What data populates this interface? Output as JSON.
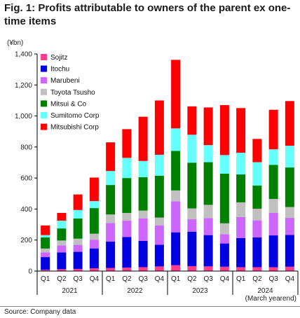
{
  "figure": {
    "title": "Fig. 1: Profits attributable to owners of the parent ex one-time items",
    "unit_label": "(¥bn)",
    "source": "Source: Company data"
  },
  "chart_data": {
    "type": "bar",
    "stacked": true,
    "categories": [
      "Q1",
      "Q2",
      "Q3",
      "Q4",
      "Q1",
      "Q2",
      "Q3",
      "Q4",
      "Q1",
      "Q2",
      "Q3",
      "Q4",
      "Q1",
      "Q2",
      "Q3",
      "Q4"
    ],
    "year_groups": [
      {
        "label": "2021",
        "start": 0,
        "end": 3
      },
      {
        "label": "2022",
        "start": 4,
        "end": 7
      },
      {
        "label": "2023",
        "start": 8,
        "end": 11
      },
      {
        "label": "2024",
        "start": 12,
        "end": 15
      }
    ],
    "xlabel": "(March yearend)",
    "ylabel": "",
    "ylim": [
      0,
      1400
    ],
    "yticks": [
      0,
      200,
      400,
      600,
      800,
      1000,
      1200,
      1400
    ],
    "ytick_labels": [
      "0",
      "200",
      "400",
      "600",
      "800",
      "1,000",
      "1,200",
      "1,400"
    ],
    "legend_position": "top-left",
    "series": [
      {
        "name": "Sojitz",
        "color": "#ff3f8e",
        "values": [
          8,
          12,
          14,
          18,
          20,
          22,
          25,
          30,
          38,
          32,
          30,
          28,
          25,
          25,
          25,
          28
        ]
      },
      {
        "name": "Itochu",
        "color": "#0000e0",
        "values": [
          82,
          108,
          110,
          128,
          170,
          198,
          170,
          140,
          212,
          222,
          202,
          150,
          188,
          192,
          205,
          205
        ]
      },
      {
        "name": "Marubeni",
        "color": "#cc66ff",
        "values": [
          30,
          45,
          45,
          55,
          120,
          105,
          145,
          125,
          200,
          80,
          110,
          60,
          135,
          110,
          145,
          110
        ]
      },
      {
        "name": "Toyota Tsusho",
        "color": "#c0c0c0",
        "values": [
          25,
          32,
          40,
          40,
          55,
          50,
          50,
          50,
          70,
          70,
          85,
          70,
          95,
          75,
          90,
          70
        ]
      },
      {
        "name": "Mitsui & Co",
        "color": "#008000",
        "values": [
          72,
          78,
          130,
          165,
          190,
          225,
          215,
          270,
          255,
          295,
          275,
          320,
          180,
          150,
          220,
          255
        ]
      },
      {
        "name": "Sumitomo Corp",
        "color": "#66ffff",
        "values": [
          15,
          50,
          55,
          45,
          90,
          130,
          105,
          135,
          145,
          180,
          110,
          120,
          140,
          150,
          100,
          140
        ]
      },
      {
        "name": "Mitsubishi Corp",
        "color": "#ff0000",
        "values": [
          62,
          50,
          100,
          152,
          185,
          185,
          285,
          350,
          442,
          183,
          243,
          322,
          288,
          150,
          255,
          288
        ]
      }
    ]
  }
}
